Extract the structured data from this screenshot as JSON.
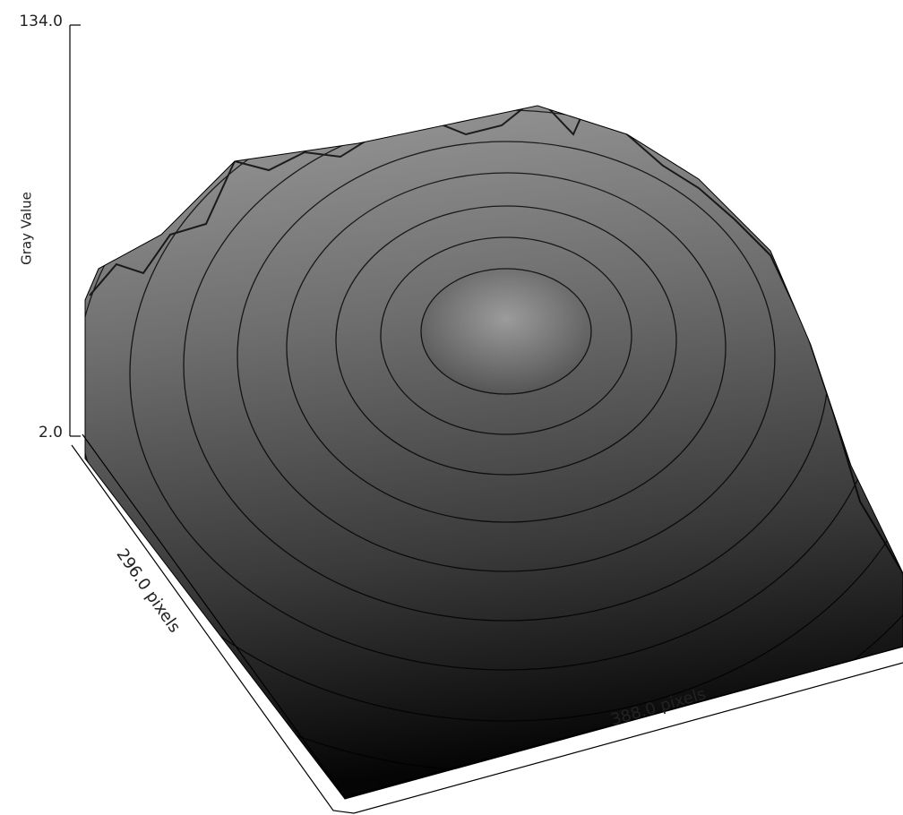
{
  "chart_data": {
    "type": "surface",
    "y_label": "Gray Value",
    "ylim": [
      2,
      134
    ],
    "yticks": [
      {
        "value": 2,
        "label": "2.0"
      },
      {
        "value": 134,
        "label": "134.0"
      }
    ],
    "depth_label": "296.0 pixels",
    "x_label": "388.0 pixels"
  }
}
